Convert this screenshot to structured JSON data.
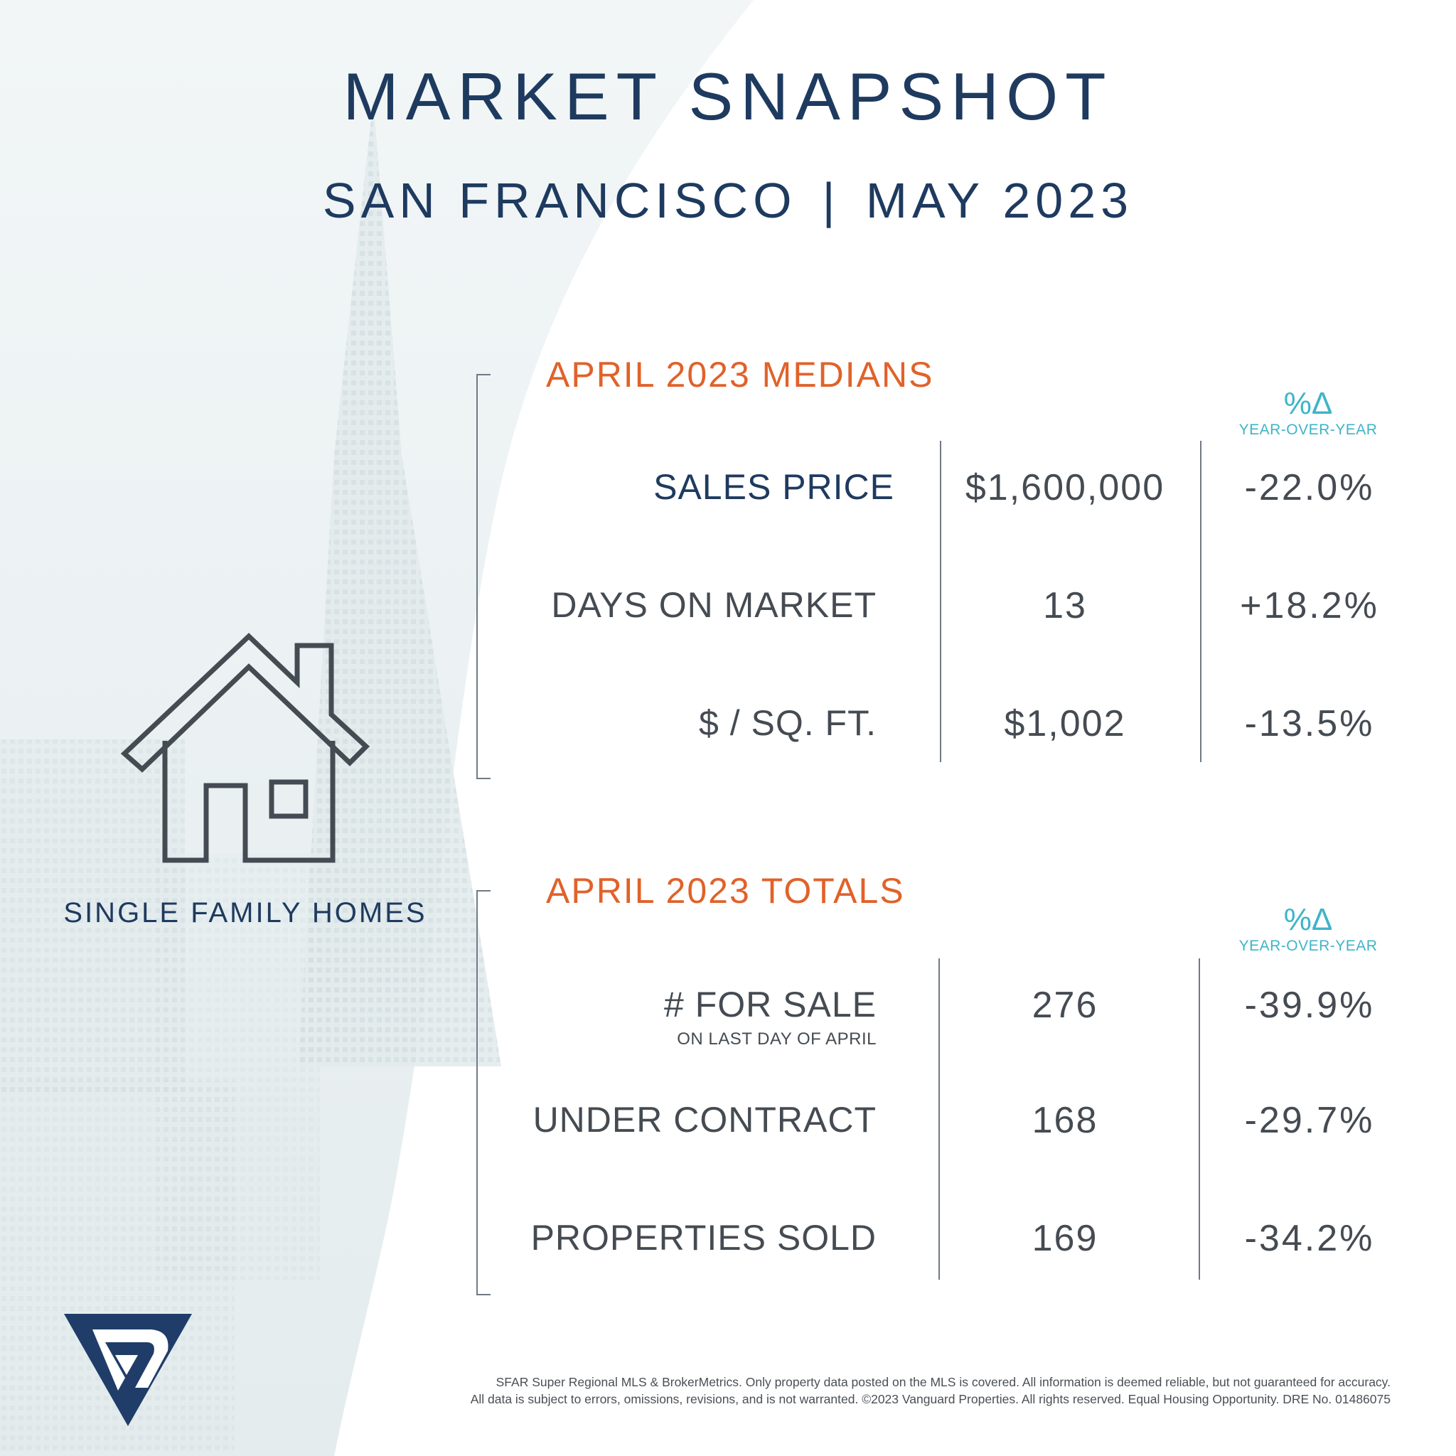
{
  "header": {
    "title": "MARKET SNAPSHOT",
    "city": "SAN FRANCISCO",
    "separator": "|",
    "period": "MAY 2023"
  },
  "category": {
    "label": "SINGLE FAMILY HOMES",
    "icon": "house-icon"
  },
  "medians": {
    "title": "APRIL 2023 MEDIANS",
    "change_symbol": "%Δ",
    "change_label": "YEAR-OVER-YEAR",
    "rows": [
      {
        "label": "SALES PRICE",
        "value": "$1,600,000",
        "change": "-22.0%"
      },
      {
        "label": "DAYS ON MARKET",
        "value": "13",
        "change": "+18.2%"
      },
      {
        "label": "$ / SQ. FT.",
        "value": "$1,002",
        "change": "-13.5%"
      }
    ]
  },
  "totals": {
    "title": "APRIL 2023 TOTALS",
    "change_symbol": "%Δ",
    "change_label": "YEAR-OVER-YEAR",
    "rows": [
      {
        "label": "# FOR SALE",
        "sublabel": "ON LAST DAY OF APRIL",
        "value": "276",
        "change": "-39.9%"
      },
      {
        "label": "UNDER CONTRACT",
        "value": "168",
        "change": "-29.7%"
      },
      {
        "label": "PROPERTIES SOLD",
        "value": "169",
        "change": "-34.2%"
      }
    ]
  },
  "footer": {
    "line1": "SFAR Super Regional MLS & BrokerMetrics. Only property data posted on the MLS is covered. All information is deemed reliable, but not guaranteed for accuracy.",
    "line2": "All data is subject to errors, omissions, revisions, and is not warranted. ©2023 Vanguard Properties. All rights reserved. Equal Housing Opportunity. DRE No. 01486075"
  },
  "colors": {
    "navy": "#1e3a5f",
    "orange": "#e0622a",
    "teal": "#3eb4c8",
    "gray_text": "#454b52"
  }
}
